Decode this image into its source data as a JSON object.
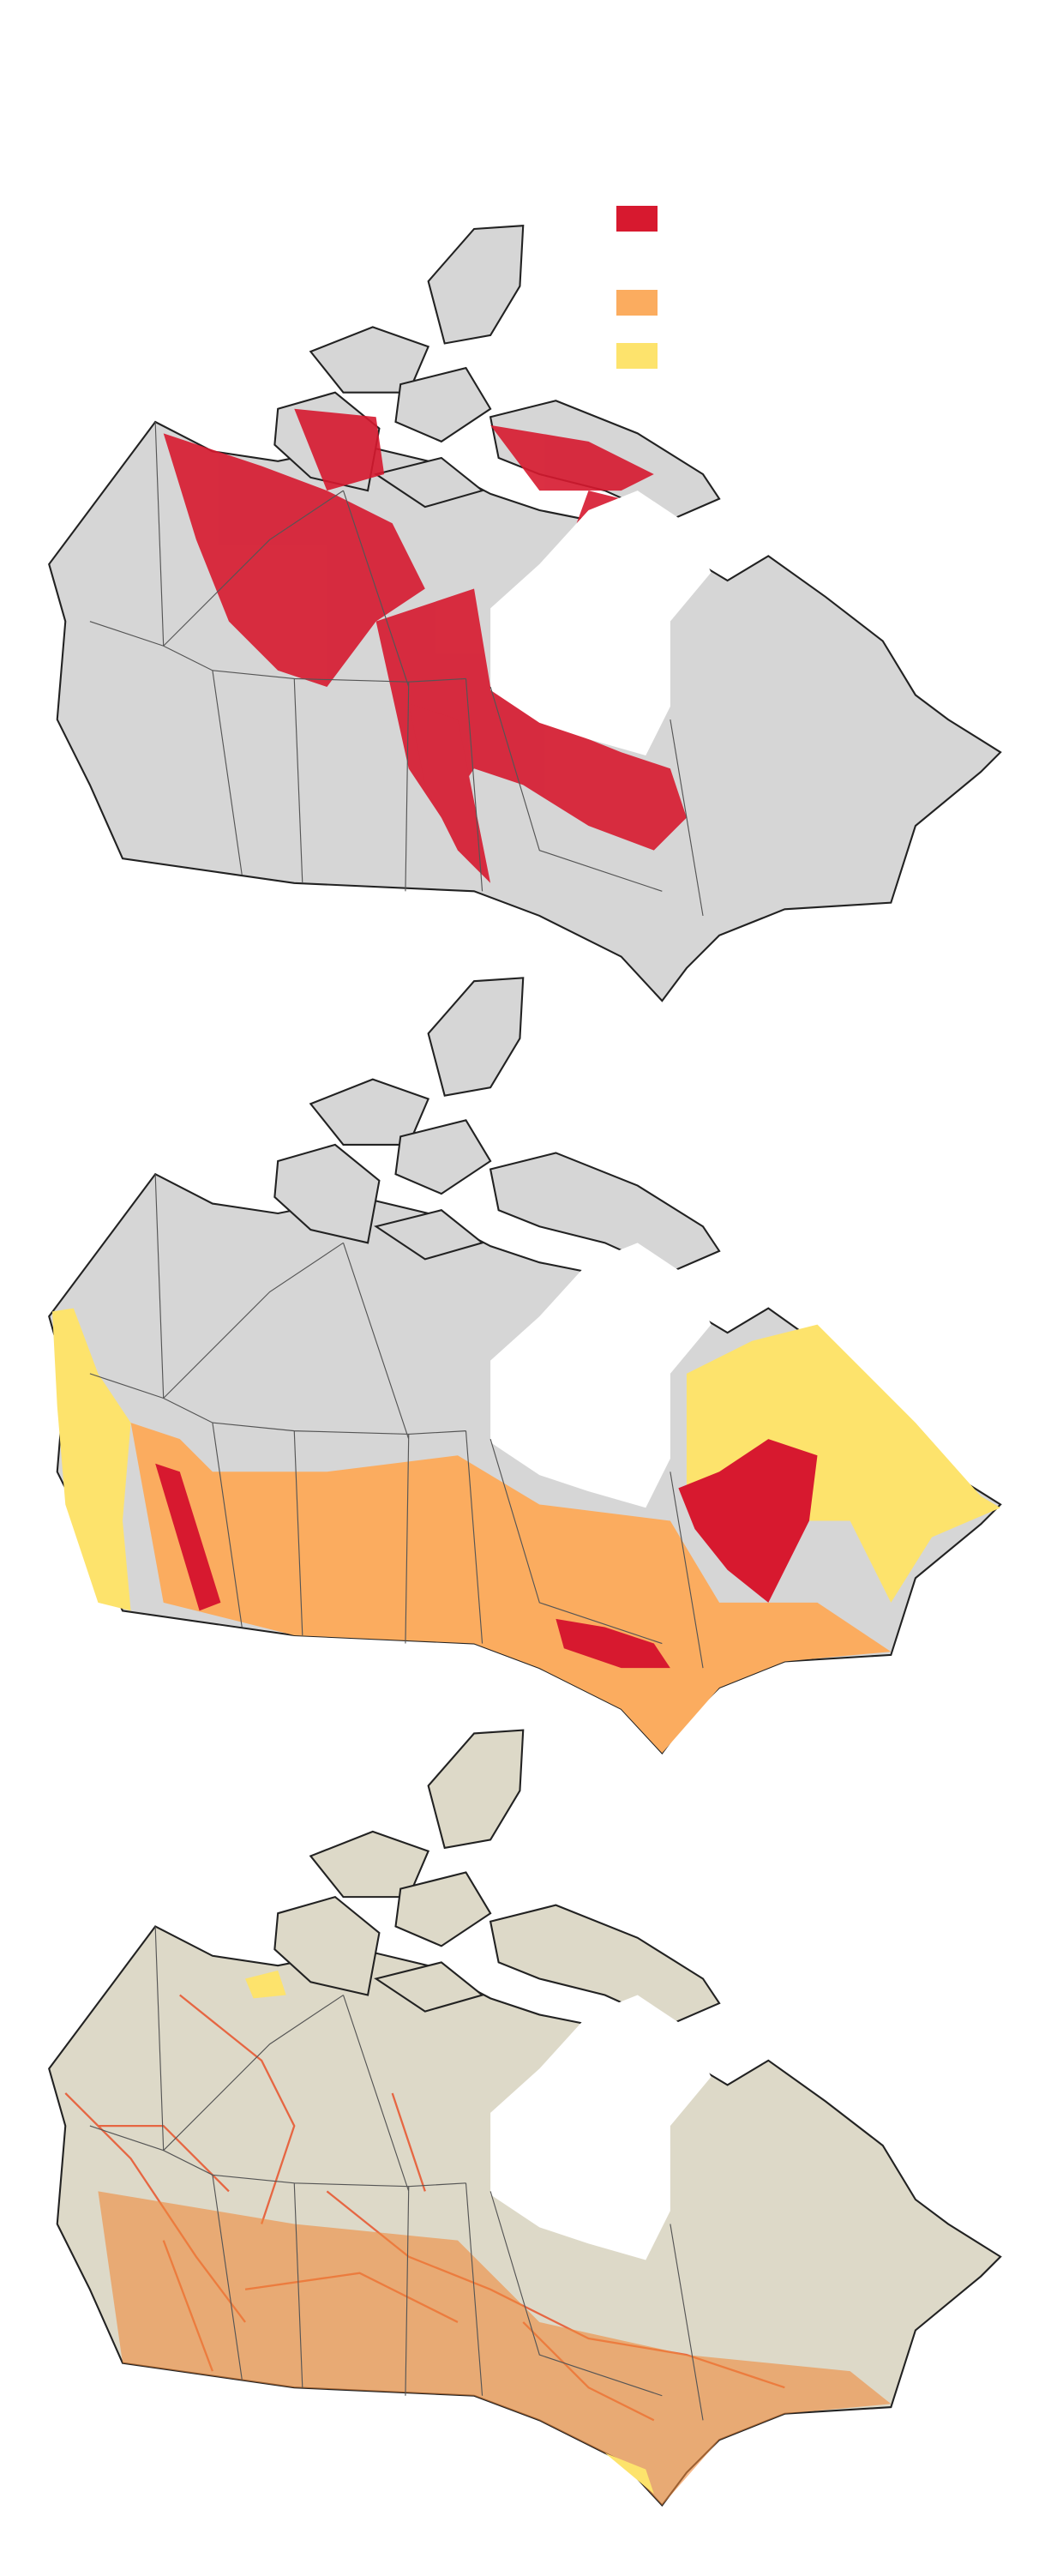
{
  "legend": {
    "colors": [
      "#d7192f",
      "#fbac5f",
      "#fde36c"
    ]
  }
}
